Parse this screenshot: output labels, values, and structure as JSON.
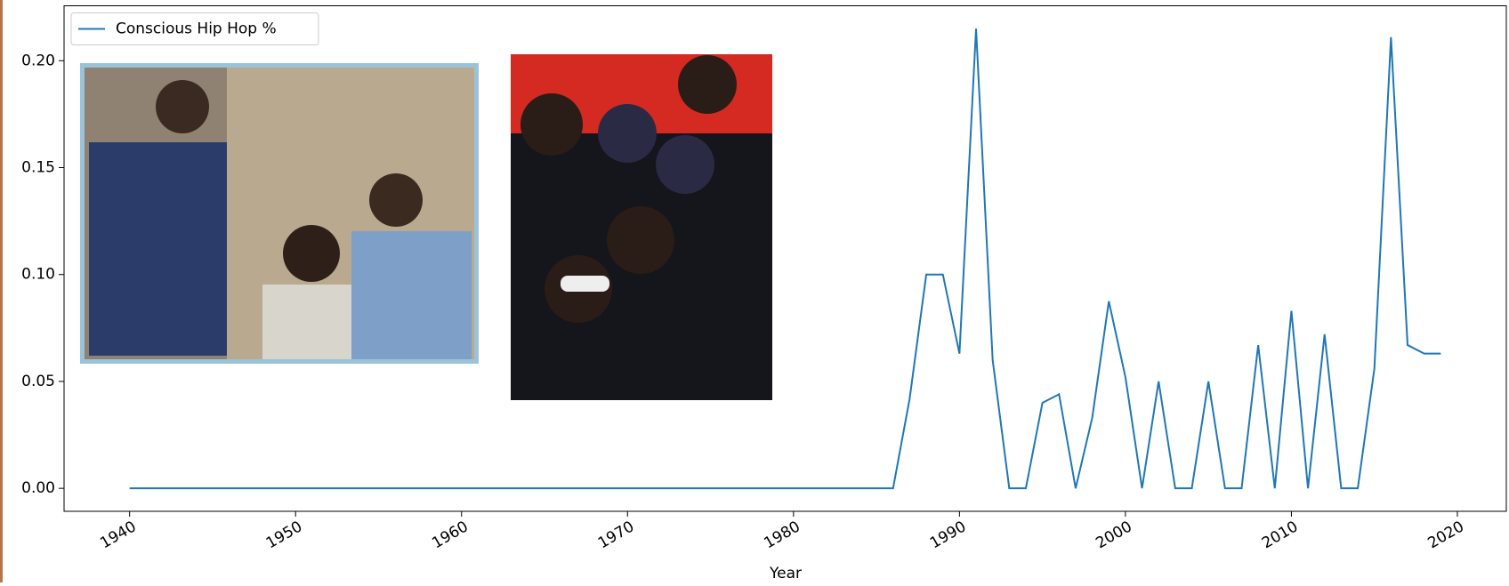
{
  "chart_data": {
    "type": "line",
    "x": [
      1940,
      1941,
      1942,
      1943,
      1944,
      1945,
      1946,
      1947,
      1948,
      1949,
      1950,
      1951,
      1952,
      1953,
      1954,
      1955,
      1956,
      1957,
      1958,
      1959,
      1960,
      1961,
      1962,
      1963,
      1964,
      1965,
      1966,
      1967,
      1968,
      1969,
      1970,
      1971,
      1972,
      1973,
      1974,
      1975,
      1976,
      1977,
      1978,
      1979,
      1980,
      1981,
      1982,
      1983,
      1984,
      1985,
      1986,
      1987,
      1988,
      1989,
      1990,
      1991,
      1992,
      1993,
      1994,
      1995,
      1996,
      1997,
      1998,
      1999,
      2000,
      2001,
      2002,
      2003,
      2004,
      2005,
      2006,
      2007,
      2008,
      2009,
      2010,
      2011,
      2012,
      2013,
      2014,
      2015,
      2016,
      2017,
      2018,
      2019
    ],
    "series": [
      {
        "name": "Conscious Hip Hop %",
        "color": "#1f77b4",
        "values": [
          0,
          0,
          0,
          0,
          0,
          0,
          0,
          0,
          0,
          0,
          0,
          0,
          0,
          0,
          0,
          0,
          0,
          0,
          0,
          0,
          0,
          0,
          0,
          0,
          0,
          0,
          0,
          0,
          0,
          0,
          0,
          0,
          0,
          0,
          0,
          0,
          0,
          0,
          0,
          0,
          0,
          0,
          0,
          0,
          0,
          0,
          0,
          0.042,
          0.1,
          0.1,
          0.063,
          0.215,
          0.06,
          0,
          0,
          0.04,
          0.044,
          0,
          0.033,
          0.0875,
          0.052,
          0,
          0.05,
          0,
          0,
          0.05,
          0,
          0,
          0.067,
          0,
          0.083,
          0,
          0.072,
          0,
          0,
          0.056,
          0.211,
          0.067,
          0.063,
          0.063
        ]
      }
    ],
    "xlabel": "Year",
    "xlim": [
      1936.05,
      2022.95
    ],
    "xticks": [
      1940,
      1950,
      1960,
      1970,
      1980,
      1990,
      2000,
      2010,
      2020
    ],
    "ylim": [
      -0.01075,
      0.2257
    ],
    "yticks": [
      {
        "value": 0,
        "label": "0.00"
      },
      {
        "value": 0.05,
        "label": "0.05"
      },
      {
        "value": 0.1,
        "label": "0.10"
      },
      {
        "value": 0.15,
        "label": "0.15"
      },
      {
        "value": 0.2,
        "label": "0.20"
      }
    ],
    "legend": "upper left"
  }
}
